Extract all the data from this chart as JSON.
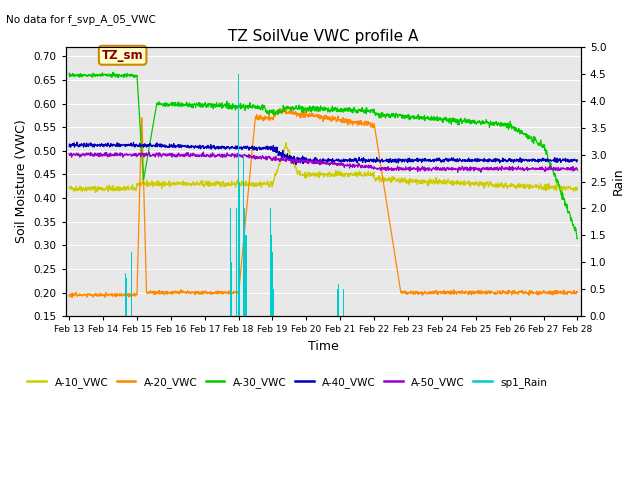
{
  "title": "TZ SoilVue VWC profile A",
  "subtitle": "No data for f_svp_A_05_VWC",
  "ylabel_left": "Soil Moisture (VWC)",
  "ylabel_right": "Rain",
  "xlabel": "Time",
  "ylim_left": [
    0.15,
    0.72
  ],
  "ylim_right": [
    0.0,
    5.0
  ],
  "yticks_left": [
    0.15,
    0.2,
    0.25,
    0.3,
    0.35,
    0.4,
    0.45,
    0.5,
    0.55,
    0.6,
    0.65,
    0.7
  ],
  "yticks_right": [
    0.0,
    0.5,
    1.0,
    1.5,
    2.0,
    2.5,
    3.0,
    3.5,
    4.0,
    4.5,
    5.0
  ],
  "colors": {
    "A10": "#cccc00",
    "A20": "#ff8800",
    "A30": "#00cc00",
    "A40": "#0000bb",
    "A50": "#9900cc",
    "rain": "#00cccc",
    "bg": "#e8e8e8",
    "grid": "#ffffff"
  },
  "annotation": {
    "text": "TZ_sm",
    "facecolor": "#ffffcc",
    "edgecolor": "#cc8800",
    "textcolor": "#880000"
  },
  "legend_labels": [
    "A-10_VWC",
    "A-20_VWC",
    "A-30_VWC",
    "A-40_VWC",
    "A-50_VWC",
    "sp1_Rain"
  ],
  "xtick_labels": [
    "Feb 13",
    "Feb 14",
    "Feb 15",
    "Feb 16",
    "Feb 17",
    "Feb 18",
    "Feb 19",
    "Feb 20",
    "Feb 21",
    "Feb 22",
    "Feb 23",
    "Feb 24",
    "Feb 25",
    "Feb 26",
    "Feb 27",
    "Feb 28"
  ]
}
